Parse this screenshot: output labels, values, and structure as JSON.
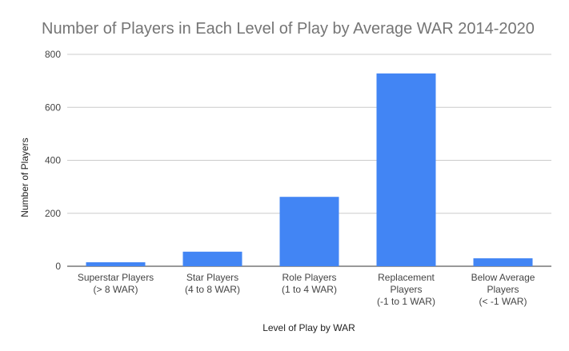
{
  "chart_data": {
    "type": "bar",
    "title": "Number of Players in Each Level of Play by Average WAR 2014-2020",
    "xlabel": "Level of Play by WAR",
    "ylabel": "Number of Players",
    "ylim": [
      0,
      800
    ],
    "yticks": [
      "0",
      "200",
      "400",
      "600",
      "800"
    ],
    "grid": true,
    "legend": "none",
    "bar_color": "#4285f4",
    "categories": [
      [
        "Superstar Players",
        "(> 8 WAR)"
      ],
      [
        "Star Players",
        "(4 to 8 WAR)"
      ],
      [
        "Role Players",
        "(1 to 4 WAR)"
      ],
      [
        "Replacement",
        "Players",
        "(-1 to 1 WAR)"
      ],
      [
        "Below Average",
        "Players",
        "(< -1 WAR)"
      ]
    ],
    "values": [
      15,
      55,
      262,
      728,
      30
    ]
  }
}
